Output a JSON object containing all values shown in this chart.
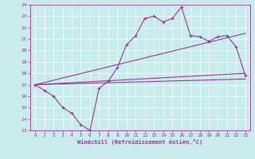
{
  "xlabel": "Windchill (Refroidissement éolien,°C)",
  "bg_color": "#c8ecec",
  "line_color": "#993399",
  "xlim_min": -0.5,
  "xlim_max": 23.5,
  "ylim_min": 13,
  "ylim_max": 24,
  "xticks": [
    0,
    1,
    2,
    3,
    4,
    5,
    6,
    7,
    8,
    9,
    10,
    11,
    12,
    13,
    14,
    15,
    16,
    17,
    18,
    19,
    20,
    21,
    22,
    23
  ],
  "yticks": [
    13,
    14,
    15,
    16,
    17,
    18,
    19,
    20,
    21,
    22,
    23,
    24
  ],
  "line1_x": [
    0,
    1,
    2,
    3,
    4,
    5,
    6,
    7,
    8,
    9,
    10,
    11,
    12,
    13,
    14,
    15,
    16,
    17,
    18,
    19,
    20,
    21,
    22,
    23
  ],
  "line1_y": [
    17.0,
    16.5,
    16.0,
    15.0,
    14.5,
    13.5,
    13.0,
    16.7,
    17.3,
    18.5,
    20.5,
    21.3,
    22.8,
    23.0,
    22.5,
    22.8,
    23.8,
    21.3,
    21.2,
    20.8,
    21.2,
    21.3,
    20.3,
    17.8
  ],
  "line2_x": [
    0,
    23
  ],
  "line2_y": [
    17.0,
    21.5
  ],
  "line3_x": [
    0,
    23
  ],
  "line3_y": [
    17.0,
    18.0
  ],
  "line4_x": [
    0,
    23
  ],
  "line4_y": [
    17.0,
    17.5
  ]
}
